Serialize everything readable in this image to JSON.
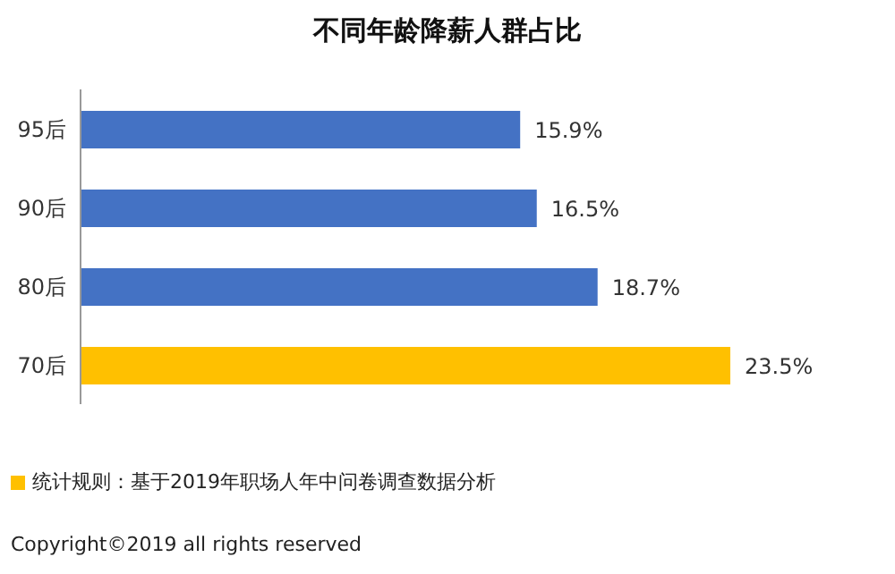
{
  "chart_data": {
    "type": "bar",
    "orientation": "horizontal",
    "title": "不同年龄降薪人群占比",
    "categories": [
      "95后",
      "90后",
      "80后",
      "70后"
    ],
    "values": [
      15.9,
      16.5,
      18.7,
      23.5
    ],
    "value_labels": [
      "15.9%",
      "16.5%",
      "18.7%",
      "23.5%"
    ],
    "colors": [
      "#4472c4",
      "#4472c4",
      "#4472c4",
      "#ffc000"
    ],
    "annotations": [
      "统计规则：基于2019年职场人年中问卷调查数据分析",
      "Copyright©2019 all rights reserved"
    ]
  }
}
